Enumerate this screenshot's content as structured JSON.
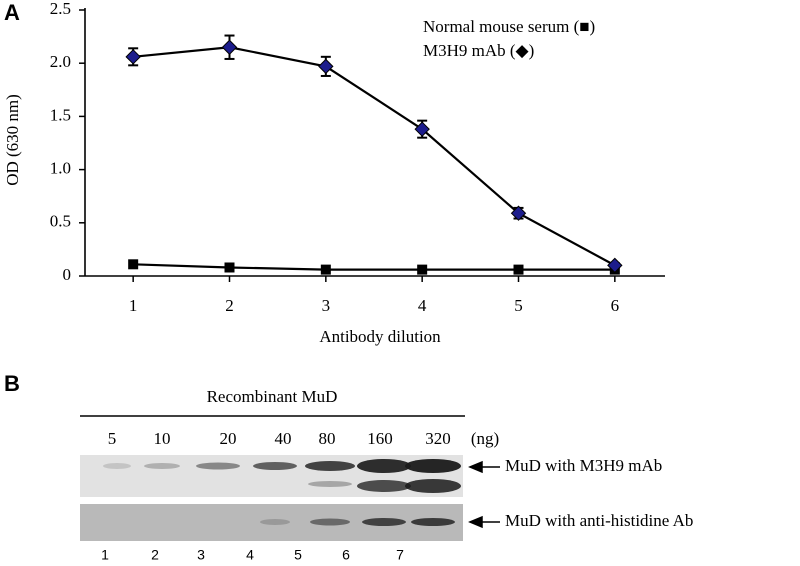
{
  "chart_data": {
    "type": "line",
    "panel_label": "A",
    "xlabel": "Antibody dilution",
    "ylabel": "OD (630 nm)",
    "x": [
      1,
      2,
      3,
      4,
      5,
      6
    ],
    "xlim": [
      0.5,
      6.5
    ],
    "xticks": [
      1,
      2,
      3,
      4,
      5,
      6
    ],
    "ylim": [
      0,
      2.5
    ],
    "yticks": [
      0,
      0.5,
      {
        "value": 1,
        "label": "1.0"
      },
      1.5,
      {
        "value": 2,
        "label": "2.0"
      },
      2.5
    ],
    "series": [
      {
        "name": "Normal mouse serum (■)",
        "color": "#000000",
        "marker": "square",
        "values": [
          0.11,
          0.08,
          0.06,
          0.06,
          0.06,
          0.06
        ]
      },
      {
        "name": "M3H9 mAb (◆)",
        "color": "#1c1c8c",
        "marker": "diamond",
        "values": [
          2.06,
          2.15,
          1.97,
          1.38,
          0.59,
          0.1
        ],
        "errors": [
          0.08,
          0.11,
          0.09,
          0.08,
          0.05,
          0.02
        ]
      }
    ]
  },
  "blot": {
    "panel_label": "B",
    "header": "Recombinant MuD",
    "amounts": [
      "5",
      "10",
      "20",
      "40",
      "80",
      "160",
      "320"
    ],
    "unit": "(ng)",
    "rows": [
      "MuD with M3H9 mAb",
      "MuD with anti-histidine Ab"
    ],
    "lanes": [
      "1",
      "2",
      "3",
      "4",
      "5",
      "6",
      "7"
    ]
  }
}
